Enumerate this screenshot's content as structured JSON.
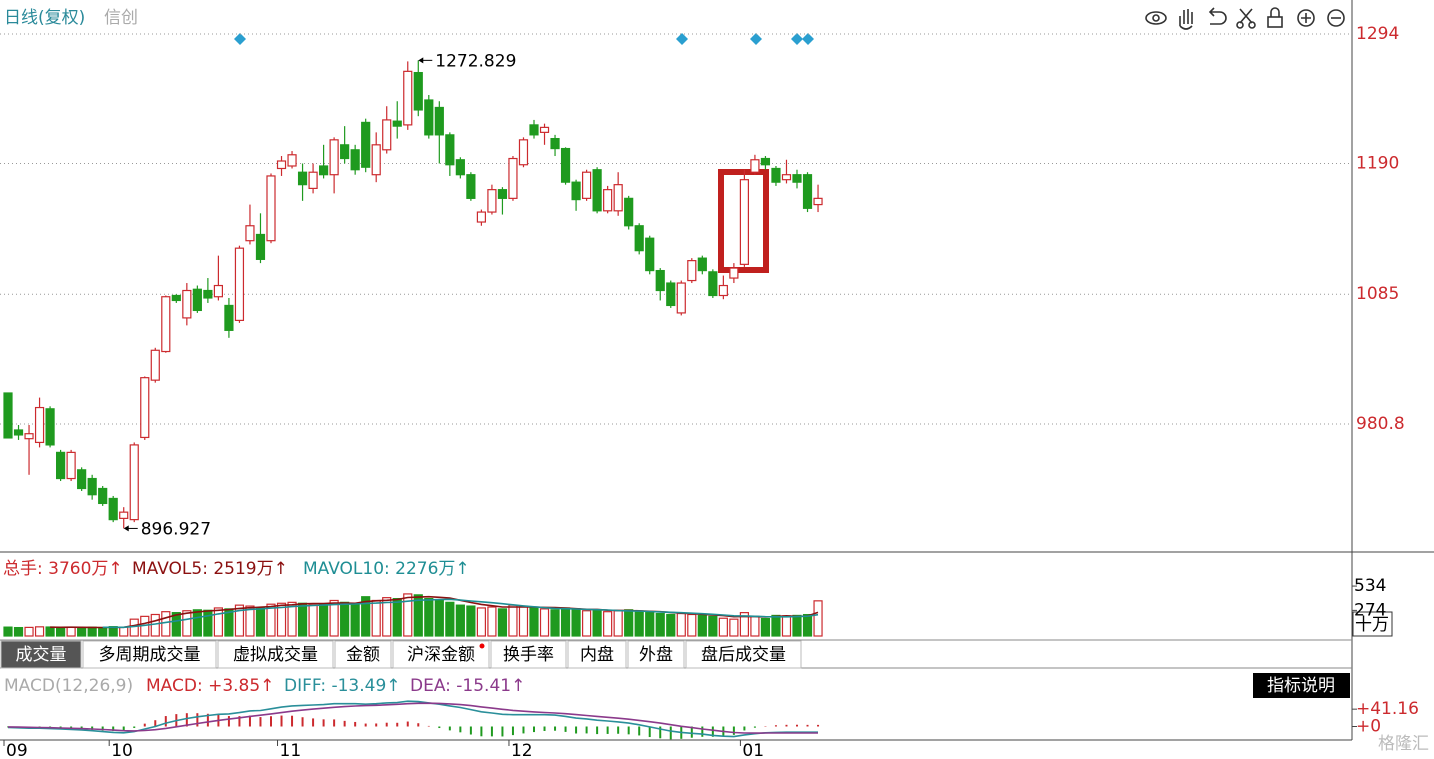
{
  "chart_data": [
    {
      "type": "candlestick",
      "title": "日线(复权)",
      "subtitle": "信创",
      "categories": [
        "09",
        null,
        null,
        null,
        null,
        null,
        null,
        null,
        null,
        null,
        "10",
        null,
        null,
        null,
        null,
        null,
        null,
        null,
        null,
        null,
        null,
        null,
        null,
        null,
        null,
        null,
        "11",
        null,
        null,
        null,
        null,
        null,
        null,
        null,
        null,
        null,
        null,
        null,
        null,
        null,
        null,
        null,
        null,
        null,
        null,
        null,
        null,
        null,
        "12",
        null,
        null,
        null,
        null,
        null,
        null,
        null,
        null,
        null,
        null,
        null,
        null,
        null,
        null,
        null,
        null,
        null,
        null,
        null,
        null,
        null,
        "01",
        null,
        null,
        null,
        null,
        null,
        null,
        null
      ],
      "open": [
        1005.7,
        976,
        969,
        966,
        993,
        958,
        937,
        944,
        937,
        929,
        921,
        905,
        904,
        970,
        1016,
        1039,
        1084,
        1066,
        1089,
        1088,
        1083,
        1076,
        1064,
        1128,
        1133,
        1128,
        1186,
        1188,
        1183,
        1170,
        1188,
        1181,
        1205,
        1201,
        1223,
        1181,
        1201,
        1224,
        1221,
        1263,
        1241,
        1235,
        1213,
        1193,
        1181,
        1143,
        1151,
        1169,
        1162,
        1189,
        1221,
        1215,
        1210,
        1202,
        1175,
        1162,
        1185,
        1152,
        1152,
        1162,
        1140,
        1130,
        1104,
        1094,
        1070,
        1096,
        1114,
        1103,
        1084,
        1098,
        1109,
        1183,
        1194,
        1186,
        1177,
        1181,
        1181,
        1157
      ],
      "high": [
        1005.7,
        980,
        980,
        1002,
        995,
        960,
        960,
        946,
        940,
        931,
        923,
        914,
        966,
        1019,
        1042,
        1084,
        1085,
        1094,
        1092,
        1098,
        1116,
        1082,
        1124,
        1157,
        1150,
        1182,
        1196,
        1200,
        1190,
        1190,
        1205,
        1211,
        1220,
        1205,
        1226,
        1215,
        1236,
        1240,
        1272,
        1272.829,
        1245,
        1240,
        1215,
        1195,
        1183,
        1153,
        1173,
        1171,
        1196,
        1211,
        1225,
        1222,
        1213,
        1203,
        1177,
        1185,
        1187,
        1172,
        1183,
        1164,
        1142,
        1132,
        1106,
        1096,
        1096,
        1114,
        1116,
        1105,
        1100,
        1110,
        1185,
        1197,
        1196,
        1188,
        1193,
        1185,
        1183,
        1173
      ],
      "low": [
        969.6,
        968,
        940,
        962,
        962,
        935,
        935,
        927,
        920,
        915,
        902,
        896.927,
        902,
        968,
        1014,
        1038,
        1078,
        1060,
        1070,
        1078,
        1080,
        1050,
        1062,
        1125,
        1110,
        1126,
        1180,
        1186,
        1160,
        1166,
        1178,
        1166,
        1190,
        1181,
        1183,
        1175,
        1198,
        1210,
        1217,
        1228,
        1210,
        1190,
        1180,
        1178,
        1160,
        1140,
        1149,
        1149,
        1160,
        1187,
        1210,
        1205,
        1196,
        1173,
        1152,
        1160,
        1150,
        1150,
        1148,
        1137,
        1117,
        1101,
        1080,
        1074,
        1068,
        1094,
        1101,
        1082,
        1081,
        1094,
        1107,
        1181,
        1185,
        1172,
        1174,
        1170,
        1151,
        1151
      ],
      "close": [
        969.6,
        972,
        973,
        994,
        964,
        937,
        958,
        929,
        924,
        917,
        904,
        910,
        964,
        1018,
        1040,
        1083,
        1080,
        1088,
        1072,
        1082,
        1092,
        1056,
        1122,
        1140,
        1113,
        1180,
        1192,
        1197,
        1173,
        1183,
        1181,
        1209,
        1194,
        1185,
        1187,
        1205,
        1225,
        1220,
        1264,
        1233,
        1213,
        1213,
        1189,
        1181,
        1162,
        1151,
        1169,
        1162,
        1194,
        1209,
        1213,
        1219,
        1202,
        1175,
        1161,
        1183,
        1152,
        1169,
        1173,
        1140,
        1120,
        1104,
        1088,
        1076,
        1094,
        1112,
        1104,
        1084,
        1092,
        1106,
        1177,
        1193,
        1189,
        1175,
        1181,
        1175,
        1154,
        1162
      ],
      "up_color": "#cc2a2e",
      "down_color": "#1f9a1f",
      "ylim": [
        878,
        1321.3
      ],
      "yticks": [
        980.8,
        1085,
        1190,
        1294
      ],
      "grid": true,
      "mark_extremes": true
    },
    {
      "type": "bar",
      "unit": "十万",
      "series": [
        {
          "name": "总手: 3760万↑",
          "color": "#cc2a2e",
          "values": [
            95,
            90,
            92,
            98,
            96,
            90,
            92,
            88,
            94,
            90,
            100,
            95,
            180,
            210,
            230,
            260,
            250,
            270,
            280,
            275,
            300,
            290,
            330,
            320,
            300,
            340,
            350,
            360,
            350,
            330,
            340,
            380,
            360,
            340,
            420,
            380,
            410,
            400,
            450,
            440,
            400,
            380,
            360,
            330,
            320,
            300,
            310,
            290,
            330,
            320,
            300,
            290,
            280,
            300,
            290,
            270,
            280,
            260,
            270,
            280,
            260,
            250,
            240,
            230,
            240,
            230,
            220,
            210,
            190,
            180,
            250,
            210,
            186,
            220,
            215,
            220,
            229,
            376
          ]
        },
        {
          "name": "MAVOL5: 2519万↑",
          "color": "#8b1010",
          "values": [
            null,
            null,
            null,
            null,
            94,
            93,
            94,
            93,
            92,
            91,
            93,
            93,
            112,
            135,
            163,
            195,
            226,
            244,
            258,
            267,
            275,
            283,
            295,
            303,
            308,
            316,
            328,
            334,
            344,
            346,
            346,
            352,
            352,
            350,
            368,
            376,
            382,
            390,
            412,
            416,
            420,
            414,
            406,
            382,
            358,
            338,
            324,
            310,
            310,
            310,
            310,
            306,
            304,
            298,
            292,
            286,
            284,
            276,
            274,
            272,
            270,
            264,
            260,
            252,
            244,
            238,
            232,
            226,
            218,
            206,
            210,
            208,
            203,
            209,
            216,
            210,
            214,
            251.9
          ]
        },
        {
          "name": "MAVOL10: 2276万↑",
          "color": "#1f8e94",
          "values": [
            null,
            null,
            null,
            null,
            null,
            null,
            null,
            null,
            null,
            93,
            93,
            93,
            102,
            114,
            128,
            145,
            161,
            179,
            198,
            216,
            236,
            254,
            272,
            285,
            290,
            298,
            305,
            314,
            322,
            326,
            330,
            336,
            340,
            342,
            349,
            352,
            358,
            362,
            372,
            383,
            386,
            390,
            392,
            384,
            374,
            366,
            356,
            345,
            334,
            322,
            312,
            303,
            295,
            292,
            289,
            284,
            281,
            278,
            272,
            268,
            266,
            262,
            258,
            253,
            249,
            244,
            238,
            232,
            225,
            216,
            215,
            211,
            206,
            205,
            205,
            208,
            212,
            227.6
          ]
        }
      ],
      "ylim": [
        0,
        631
      ],
      "yticks": [
        274,
        534
      ]
    },
    {
      "type": "macd",
      "title": "MACD(12,26,9)",
      "series": [
        {
          "name": "MACD: +3.85↑",
          "color": "#cc2a2e",
          "negative_color": "#1f9a1f",
          "values": [
            -2,
            -3.2,
            -4.2,
            -3.4,
            -4.4,
            -5,
            -5.6,
            -6,
            -8,
            -9.6,
            -10.8,
            -10.2,
            -3.4,
            6.8,
            15,
            24.8,
            29.4,
            31.6,
            31.6,
            30.2,
            29,
            24.8,
            24.6,
            26,
            22.4,
            24.4,
            26,
            25.6,
            22,
            19.2,
            17,
            16.8,
            13.4,
            10.8,
            7,
            7.2,
            9,
            8.8,
            11.8,
            7.8,
            1.4,
            -3.6,
            -9.2,
            -13.8,
            -19,
            -23.2,
            -23.4,
            -23.6,
            -20.4,
            -16.4,
            -13.2,
            -10.6,
            -10,
            -12.8,
            -16.6,
            -16.4,
            -18,
            -17.6,
            -17.2,
            -18.6,
            -21.2,
            -25,
            -28,
            -30.4,
            -29.2,
            -26.6,
            -24.4,
            -24.4,
            -22.8,
            -19.8,
            -9.4,
            -2.8,
            1,
            3,
            4,
            4.2,
            3.9,
            3.85
          ]
        },
        {
          "name": "DIFF: -13.49↑",
          "color": "#2a8f9a",
          "values": [
            -2,
            -3,
            -4,
            -4,
            -5,
            -6,
            -7,
            -8,
            -10,
            -12,
            -14,
            -15,
            -12,
            -6,
            0,
            8,
            14,
            19,
            23,
            26,
            29,
            30,
            33,
            37,
            38,
            42,
            46,
            49,
            50,
            51,
            52,
            54,
            54,
            54,
            53,
            54,
            56,
            57,
            60,
            59,
            56,
            53,
            49,
            45,
            40,
            35,
            32,
            29,
            28,
            28,
            28,
            28,
            27,
            24,
            20,
            18,
            15,
            13,
            11,
            8,
            4,
            -1,
            -6,
            -11,
            -14,
            -16,
            -18,
            -21,
            -23,
            -24,
            -20,
            -17,
            -15,
            -14,
            -13.5,
            -13.4,
            -13.5,
            -13.49
          ]
        },
        {
          "name": "DEA: -15.41↑",
          "color": "#8b3a8b",
          "values": [
            -1,
            -1.4,
            -1.9,
            -2.3,
            -2.8,
            -3.5,
            -4.2,
            -5,
            -6,
            -7.2,
            -8.6,
            -9.9,
            -10.3,
            -9.4,
            -7.5,
            -4.4,
            -0.7,
            3.2,
            7.2,
            10.9,
            14.5,
            17.6,
            20.7,
            24,
            26.8,
            29.8,
            33,
            36.2,
            39,
            41.4,
            43.5,
            45.6,
            47.3,
            48.6,
            49.5,
            50.4,
            51.5,
            52.6,
            54.1,
            55.1,
            55.3,
            54.8,
            53.6,
            51.9,
            49.5,
            46.6,
            43.7,
            40.8,
            38.2,
            36.2,
            34.6,
            33.3,
            32,
            30.4,
            28.3,
            26.2,
            24,
            21.8,
            19.6,
            17.3,
            14.6,
            11.5,
            8,
            4.2,
            0.6,
            -2.7,
            -5.8,
            -8.8,
            -11.6,
            -14.1,
            -15.3,
            -15.6,
            -15.5,
            -15.5,
            -15.5,
            -15.5,
            -15.45,
            -15.41
          ]
        }
      ],
      "ylim": [
        -32,
        70
      ],
      "yticks": [
        {
          "value": 0,
          "label": "+0"
        },
        {
          "value": 41.16,
          "label": "+41.16"
        }
      ]
    }
  ],
  "tabs": [
    "成交量",
    "多周期成交量",
    "虚拟成交量",
    "金额",
    "沪深金额",
    "换手率",
    "内盘",
    "外盘",
    "盘后成交量"
  ],
  "button": "指标说明",
  "watermark": "格隆汇"
}
